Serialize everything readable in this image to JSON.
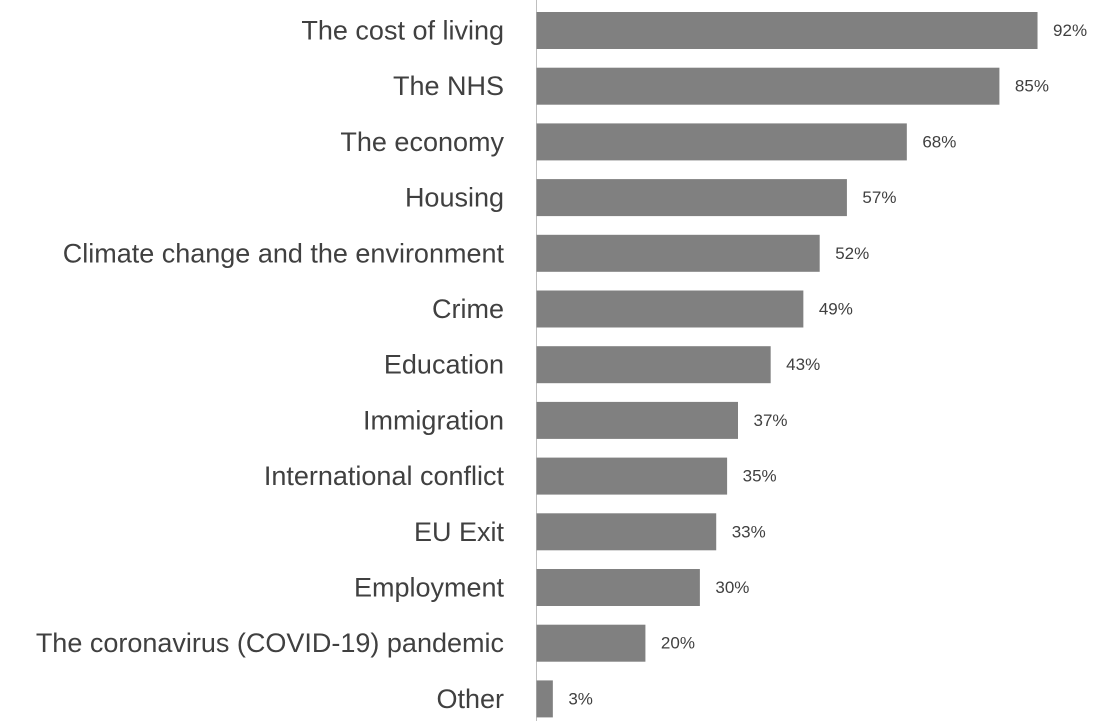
{
  "chart_data": {
    "type": "bar",
    "orientation": "horizontal",
    "title": "",
    "xlabel": "",
    "ylabel": "",
    "xlim": [
      0,
      100
    ],
    "grid": false,
    "legend": "none",
    "value_suffix": "%",
    "bar_color": "#808080",
    "axis_color": "#bfbfbf",
    "categories": [
      "The cost of living",
      "The NHS",
      "The economy",
      "Housing",
      "Climate change and the environment",
      "Crime",
      "Education",
      "Immigration",
      "International conflict",
      "EU Exit",
      "Employment",
      "The coronavirus (COVID-19) pandemic",
      "Other"
    ],
    "values": [
      92,
      85,
      68,
      57,
      52,
      49,
      43,
      37,
      35,
      33,
      30,
      20,
      3
    ],
    "data_labels": [
      "92%",
      "85%",
      "68%",
      "57%",
      "52%",
      "49%",
      "43%",
      "37%",
      "35%",
      "33%",
      "30%",
      "20%",
      "3%"
    ]
  }
}
